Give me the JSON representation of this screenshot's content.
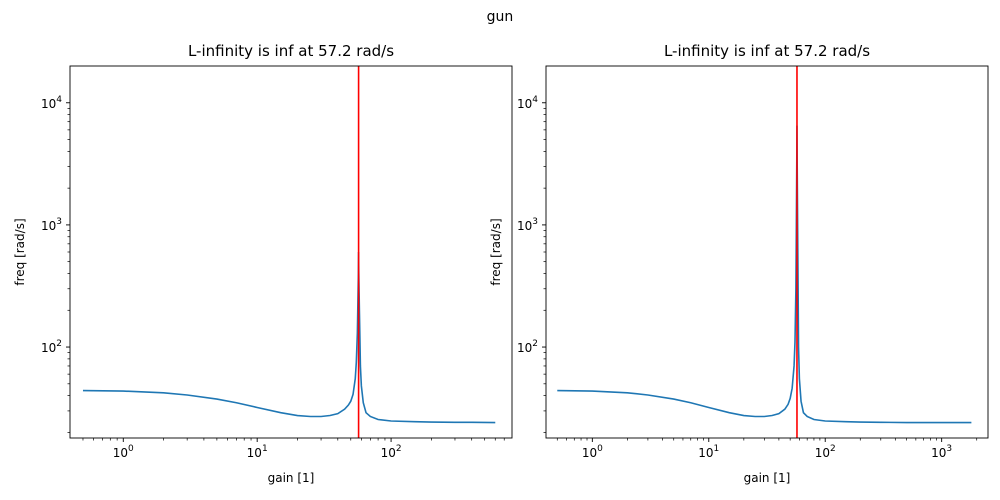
{
  "figure": {
    "suptitle": "gun"
  },
  "chart_data": [
    {
      "type": "line",
      "title": "L-infinity is inf at 57.2 rad/s",
      "xlabel": "gain [1]",
      "ylabel": "freq [rad/s]",
      "xscale": "log",
      "yscale": "log",
      "xlim": [
        0.4,
        800
      ],
      "ylim": [
        18,
        20000
      ],
      "xticks": [
        {
          "value": 1,
          "base": "10",
          "exp": "0"
        },
        {
          "value": 10,
          "base": "10",
          "exp": "1"
        },
        {
          "value": 100,
          "base": "10",
          "exp": "2"
        }
      ],
      "yticks": [
        {
          "value": 100,
          "base": "10",
          "exp": "2"
        },
        {
          "value": 1000,
          "base": "10",
          "exp": "3"
        },
        {
          "value": 10000,
          "base": "10",
          "exp": "4"
        }
      ],
      "grid": false,
      "series_color": "#1f77b4",
      "vline": {
        "x": 57.2,
        "color": "#ff0000"
      },
      "series": [
        {
          "x": [
            0.5,
            1,
            2,
            3,
            5,
            7,
            10,
            15,
            20,
            25,
            30,
            35,
            40,
            45,
            48,
            50,
            52,
            54,
            55,
            56,
            56.5,
            57,
            57.2,
            57.4,
            58,
            58.5,
            59,
            60,
            62,
            65,
            70,
            80,
            100,
            150,
            200,
            300,
            400,
            600
          ],
          "y": [
            44,
            43.6,
            42.2,
            40.5,
            37.5,
            35,
            32,
            29,
            27.5,
            27,
            27,
            27.5,
            28.5,
            31,
            33.5,
            36,
            41,
            55,
            75,
            130,
            230,
            400,
            600,
            400,
            200,
            120,
            70,
            48,
            35,
            29,
            27,
            25.5,
            24.8,
            24.5,
            24.3,
            24.2,
            24.2,
            24.1
          ]
        }
      ]
    },
    {
      "type": "line",
      "title": "L-infinity is inf at 57.2 rad/s",
      "xlabel": "gain [1]",
      "ylabel": "freq [rad/s]",
      "xscale": "log",
      "yscale": "log",
      "xlim": [
        0.4,
        2500
      ],
      "ylim": [
        18,
        20000
      ],
      "xticks": [
        {
          "value": 1,
          "base": "10",
          "exp": "0"
        },
        {
          "value": 10,
          "base": "10",
          "exp": "1"
        },
        {
          "value": 100,
          "base": "10",
          "exp": "2"
        },
        {
          "value": 1000,
          "base": "10",
          "exp": "3"
        }
      ],
      "yticks": [
        {
          "value": 100,
          "base": "10",
          "exp": "2"
        },
        {
          "value": 1000,
          "base": "10",
          "exp": "3"
        },
        {
          "value": 10000,
          "base": "10",
          "exp": "4"
        }
      ],
      "grid": false,
      "series_color": "#1f77b4",
      "vline": {
        "x": 57.2,
        "color": "#ff0000"
      },
      "series": [
        {
          "x": [
            0.5,
            1,
            2,
            3,
            5,
            7,
            10,
            15,
            20,
            25,
            30,
            35,
            40,
            45,
            48,
            50,
            52,
            54,
            55,
            56,
            56.5,
            57,
            57.2,
            57.4,
            58,
            58.5,
            59,
            60,
            62,
            65,
            70,
            80,
            100,
            150,
            200,
            300,
            500,
            1000,
            1800
          ],
          "y": [
            44,
            43.6,
            42.2,
            40.5,
            37.5,
            35,
            32,
            29,
            27.5,
            27,
            27,
            27.5,
            28.5,
            31,
            34,
            38,
            46,
            70,
            110,
            300,
            1000,
            3500,
            6500,
            3500,
            900,
            300,
            100,
            55,
            36,
            29,
            27,
            25.5,
            24.8,
            24.5,
            24.3,
            24.2,
            24.1,
            24.1,
            24.1
          ]
        }
      ]
    }
  ]
}
